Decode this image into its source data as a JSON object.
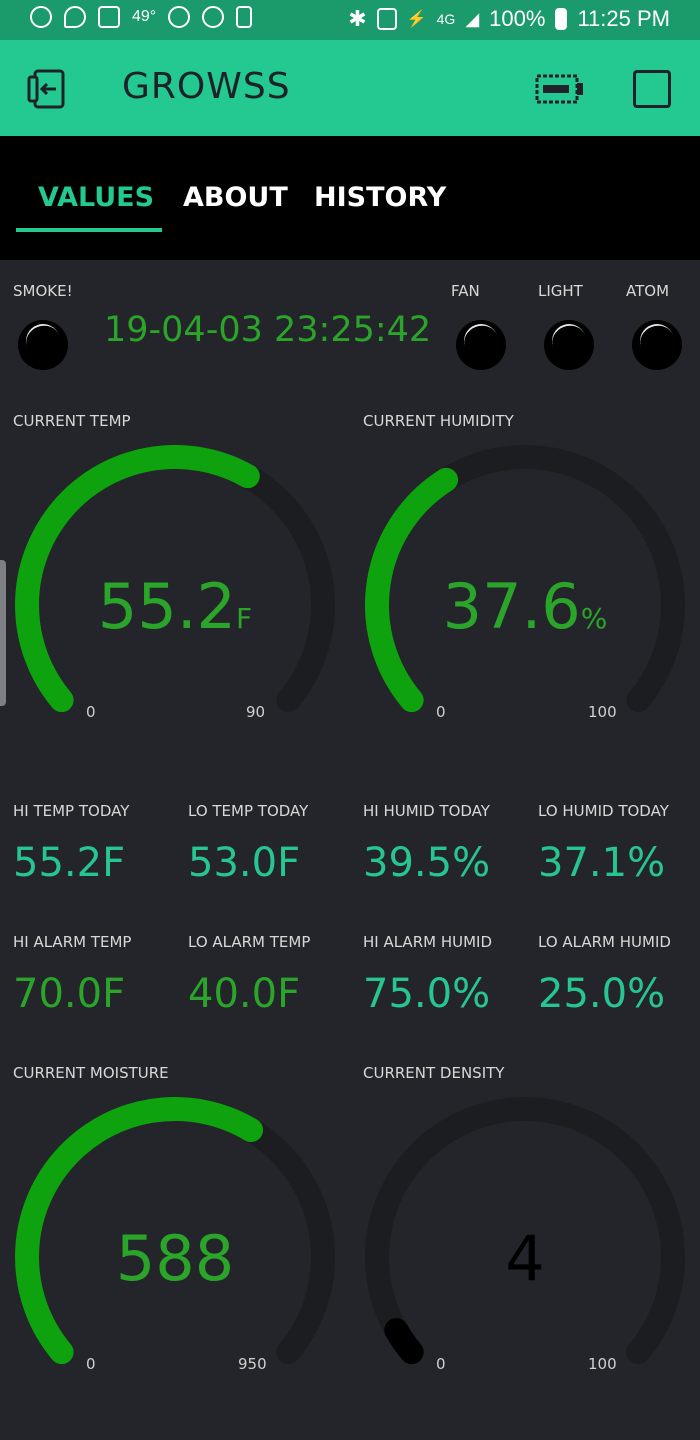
{
  "status_bar": {
    "temp": "49°",
    "battery_percent": "100%",
    "time": "11:25 PM",
    "network": "4G"
  },
  "app": {
    "title": "GROWSS"
  },
  "tabs": [
    {
      "label": "VALUES",
      "active": true
    },
    {
      "label": "ABOUT",
      "active": false
    },
    {
      "label": "HISTORY",
      "active": false
    }
  ],
  "indicators": {
    "smoke_label": "SMOKE!",
    "fan_label": "FAN",
    "light_label": "LIGHT",
    "atom_label": "ATOM",
    "datetime": "19-04-03 23:25:42"
  },
  "gauges": {
    "temp": {
      "label": "CURRENT TEMP",
      "value": 55.2,
      "display": "55.2",
      "unit": "F",
      "min": "0",
      "max": "90",
      "min_v": 0,
      "max_v": 90,
      "color": "#0fa20f"
    },
    "humidity": {
      "label": "CURRENT HUMIDITY",
      "value": 37.6,
      "display": "37.6",
      "unit": "%",
      "min": "0",
      "max": "100",
      "min_v": 0,
      "max_v": 100,
      "color": "#0fa20f"
    },
    "moisture": {
      "label": "CURRENT MOISTURE",
      "value": 588,
      "display": "588",
      "unit": "",
      "min": "0",
      "max": "950",
      "min_v": 0,
      "max_v": 950,
      "color": "#0fa20f"
    },
    "density": {
      "label": "CURRENT DENSITY",
      "value": 4,
      "display": "4",
      "unit": "",
      "min": "0",
      "max": "100",
      "min_v": 0,
      "max_v": 100,
      "color": "#000000"
    }
  },
  "stats": {
    "hi_temp": {
      "label": "HI TEMP TODAY",
      "value": "55.2F"
    },
    "lo_temp": {
      "label": "LO TEMP TODAY",
      "value": "53.0F"
    },
    "hi_humid": {
      "label": "HI HUMID TODAY",
      "value": "39.5%"
    },
    "lo_humid": {
      "label": "LO HUMID TODAY",
      "value": "37.1%"
    },
    "hi_alarm_temp": {
      "label": "HI ALARM TEMP",
      "value": "70.0F"
    },
    "lo_alarm_temp": {
      "label": "LO ALARM TEMP",
      "value": "40.0F"
    },
    "hi_alarm_humid": {
      "label": "HI ALARM HUMID",
      "value": "75.0%"
    },
    "lo_alarm_humid": {
      "label": "LO ALARM HUMID",
      "value": "25.0%"
    }
  },
  "icons": {
    "appbar_left": "exit-door-icon",
    "appbar_battery": "battery-icon",
    "appbar_right": "square-icon"
  }
}
